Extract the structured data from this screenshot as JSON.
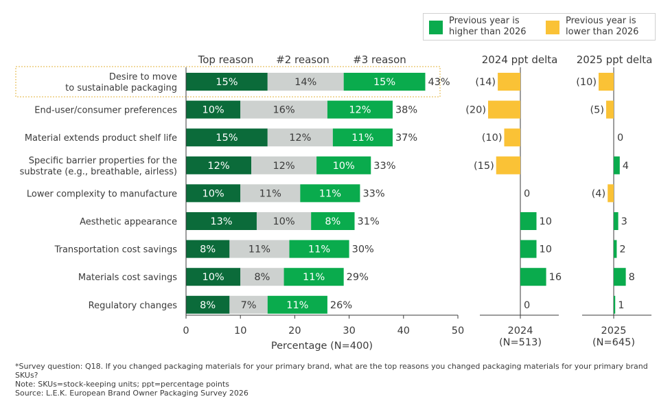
{
  "chart_data": {
    "type": "bar",
    "categories": [
      [
        "Desire to move",
        "to sustainable packaging"
      ],
      [
        "End-user/consumer preferences"
      ],
      [
        "Material extends product shelf life"
      ],
      [
        "Specific barrier properties for the",
        "substrate (e.g., breathable, airless)"
      ],
      [
        "Lower complexity to manufacture"
      ],
      [
        "Aesthetic appearance"
      ],
      [
        "Transportation cost savings"
      ],
      [
        "Materials cost savings"
      ],
      [
        "Regulatory changes"
      ]
    ],
    "series": [
      {
        "name": "Top reason",
        "color": "#0b6b3a",
        "text_color": "#ffffff",
        "values": [
          15,
          10,
          15,
          12,
          10,
          13,
          8,
          10,
          8
        ],
        "labels": [
          "15%",
          "10%",
          "15%",
          "12%",
          "10%",
          "13%",
          "8%",
          "10%",
          "8%"
        ]
      },
      {
        "name": "#2 reason",
        "color": "#cdd1cf",
        "text_color": "#3a3a3a",
        "values": [
          14,
          16,
          12,
          12,
          11,
          10,
          11,
          8,
          7
        ],
        "labels": [
          "14%",
          "16%",
          "12%",
          "12%",
          "11%",
          "10%",
          "11%",
          "8%",
          "7%"
        ]
      },
      {
        "name": "#3 reason",
        "color": "#0aab4d",
        "text_color": "#ffffff",
        "values": [
          15,
          12,
          11,
          10,
          11,
          8,
          11,
          11,
          11
        ],
        "labels": [
          "15%",
          "12%",
          "11%",
          "10%",
          "11%",
          "8%",
          "11%",
          "11%",
          "11%"
        ]
      }
    ],
    "totals": [
      "43%",
      "38%",
      "37%",
      "33%",
      "33%",
      "31%",
      "30%",
      "29%",
      "26%"
    ],
    "xlabel": "Percentage (N=400)",
    "xlim": [
      0,
      50
    ],
    "xticks": [
      "0",
      "10",
      "20",
      "30",
      "40",
      "50"
    ],
    "deltas": [
      {
        "title": "2024 ppt delta",
        "axis_label": "2024",
        "n_label": "(N=513)",
        "values": [
          -14,
          -20,
          -10,
          -15,
          0,
          10,
          10,
          16,
          0
        ],
        "labels": [
          "(14)",
          "(20)",
          "(10)",
          "(15)",
          "0",
          "10",
          "10",
          "16",
          "0"
        ]
      },
      {
        "title": "2025 ppt delta",
        "axis_label": "2025",
        "n_label": "(N=645)",
        "values": [
          -10,
          -5,
          0,
          4,
          -4,
          3,
          2,
          8,
          1
        ],
        "labels": [
          "(10)",
          "(5)",
          "0",
          "4",
          "(4)",
          "3",
          "2",
          "8",
          "1"
        ]
      }
    ],
    "highlighted_category": 0
  },
  "legend": [
    {
      "label_lines": [
        "Previous year is",
        "higher than 2026"
      ],
      "color": "#0aab4d"
    },
    {
      "label_lines": [
        "Previous year is",
        "lower than 2026"
      ],
      "color": "#fac236"
    }
  ],
  "footnotes": [
    "*Survey question: Q18. If you changed packaging materials for your primary brand, what are the top reasons you changed packaging materials for your primary brand SKUs?",
    "Note: SKUs=stock-keeping units; ppt=percentage points",
    "Source: L.E.K. European Brand Owner Packaging Survey 2026"
  ]
}
